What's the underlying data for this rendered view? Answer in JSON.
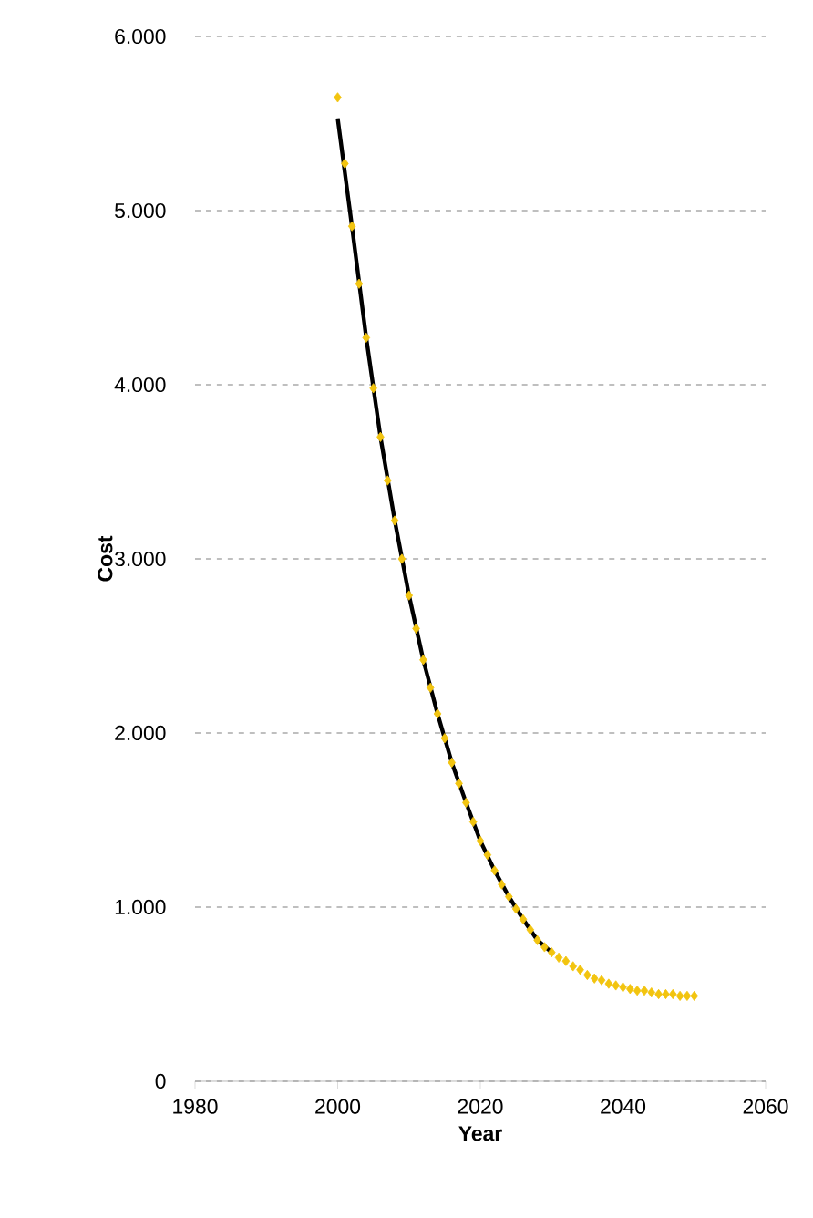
{
  "chart_data": {
    "type": "scatter",
    "xlabel": "Year",
    "ylabel": "Cost",
    "xlim": [
      1980,
      2060
    ],
    "xticks": [
      1980,
      2000,
      2020,
      2040,
      2060
    ],
    "ylim": [
      0,
      6000
    ],
    "yticks": [
      0,
      {
        "value": 1000,
        "label": "1.000"
      },
      {
        "value": 2000,
        "label": "2.000"
      },
      {
        "value": 3000,
        "label": "3.000"
      },
      {
        "value": 4000,
        "label": "4.000"
      },
      {
        "value": 5000,
        "label": "5.000"
      },
      {
        "value": 6000,
        "label": "6.000"
      }
    ],
    "grid": "y",
    "marker": "diamond",
    "series": [
      {
        "type": "line",
        "marker": "none",
        "color": "#000000",
        "x": [
          2000,
          2002,
          2004,
          2006,
          2008,
          2010,
          2012,
          2014,
          2016,
          2018,
          2020,
          2022,
          2024,
          2026,
          2028,
          2030
        ],
        "values": [
          5530,
          4910,
          4270,
          3700,
          3220,
          2790,
          2420,
          2110,
          1830,
          1600,
          1380,
          1210,
          1060,
          930,
          810,
          740
        ]
      },
      {
        "color": "#f2c40f",
        "x": [
          2000,
          2001,
          2002,
          2003,
          2004,
          2005,
          2006,
          2007,
          2008,
          2009,
          2010,
          2011,
          2012,
          2013,
          2014,
          2015,
          2016,
          2017,
          2018,
          2019,
          2020,
          2021,
          2022,
          2023,
          2024,
          2025,
          2026,
          2027,
          2028,
          2029,
          2030,
          2031,
          2032,
          2033,
          2034,
          2035,
          2036,
          2037,
          2038,
          2039,
          2040,
          2041,
          2042,
          2043,
          2044,
          2045,
          2046,
          2047,
          2048,
          2049,
          2050
        ],
        "values": [
          5650,
          5270,
          4910,
          4580,
          4270,
          3980,
          3700,
          3450,
          3220,
          3000,
          2790,
          2600,
          2420,
          2260,
          2110,
          1970,
          1830,
          1710,
          1600,
          1490,
          1380,
          1300,
          1210,
          1130,
          1060,
          990,
          930,
          870,
          810,
          770,
          740,
          710,
          690,
          660,
          640,
          610,
          590,
          580,
          560,
          550,
          540,
          530,
          520,
          520,
          510,
          500,
          500,
          500,
          490,
          490,
          490
        ]
      }
    ]
  }
}
